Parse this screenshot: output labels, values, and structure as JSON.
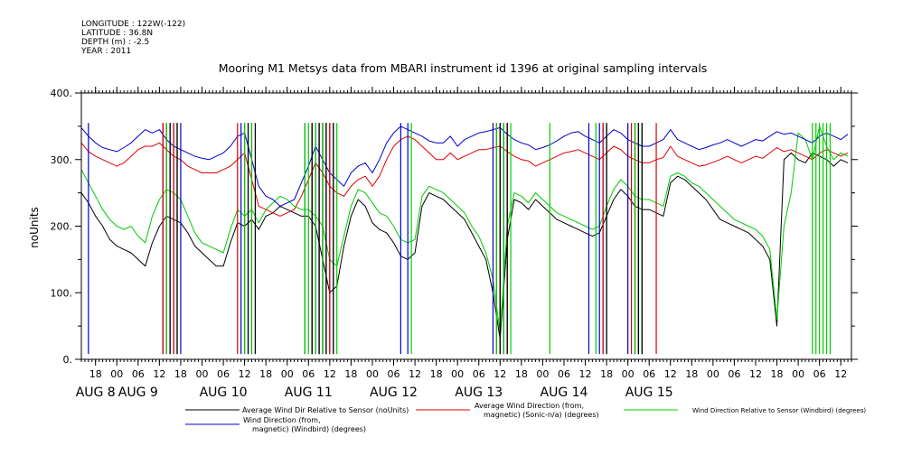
{
  "metadata": {
    "longitude": "LONGITUDE : 122W(-122)",
    "latitude": "LATITUDE : 36.8N",
    "depth": "DEPTH (m) : -2.5",
    "year": "YEAR : 2011"
  },
  "chart_data": {
    "type": "line",
    "title": "Mooring M1 Metsys data from MBARI instrument id 1396 at original sampling intervals",
    "ylabel": "noUnits",
    "xlabel": "",
    "ylim": [
      0,
      400
    ],
    "yticks": [
      "0.",
      "100.",
      "200.",
      "300.",
      "400."
    ],
    "xlim_hours": [
      -10,
      207
    ],
    "hour_ticks": [
      {
        "h": -6,
        "label": "18"
      },
      {
        "h": 0,
        "label": "00"
      },
      {
        "h": 6,
        "label": "06"
      },
      {
        "h": 12,
        "label": "12"
      },
      {
        "h": 18,
        "label": "18"
      },
      {
        "h": 24,
        "label": "00"
      },
      {
        "h": 30,
        "label": "06"
      },
      {
        "h": 36,
        "label": "12"
      },
      {
        "h": 42,
        "label": "18"
      },
      {
        "h": 48,
        "label": "00"
      },
      {
        "h": 54,
        "label": "06"
      },
      {
        "h": 60,
        "label": "12"
      },
      {
        "h": 66,
        "label": "18"
      },
      {
        "h": 72,
        "label": "00"
      },
      {
        "h": 78,
        "label": "06"
      },
      {
        "h": 84,
        "label": "12"
      },
      {
        "h": 90,
        "label": "18"
      },
      {
        "h": 96,
        "label": "00"
      },
      {
        "h": 102,
        "label": "06"
      },
      {
        "h": 108,
        "label": "12"
      },
      {
        "h": 114,
        "label": "18"
      },
      {
        "h": 120,
        "label": "00"
      },
      {
        "h": 126,
        "label": "06"
      },
      {
        "h": 132,
        "label": "12"
      },
      {
        "h": 138,
        "label": "18"
      },
      {
        "h": 144,
        "label": "00"
      },
      {
        "h": 150,
        "label": "06"
      },
      {
        "h": 156,
        "label": "12"
      },
      {
        "h": 162,
        "label": "18"
      },
      {
        "h": 168,
        "label": "00"
      },
      {
        "h": 174,
        "label": "06"
      },
      {
        "h": 180,
        "label": "12"
      },
      {
        "h": 186,
        "label": "18"
      },
      {
        "h": 192,
        "label": "00"
      },
      {
        "h": 198,
        "label": "06"
      },
      {
        "h": 204,
        "label": "12"
      }
    ],
    "day_labels": [
      {
        "h": -6,
        "label": "AUG  8"
      },
      {
        "h": 6,
        "label": "AUG  9"
      },
      {
        "h": 30,
        "label": "AUG 10"
      },
      {
        "h": 54,
        "label": "AUG 11"
      },
      {
        "h": 78,
        "label": "AUG 12"
      },
      {
        "h": 102,
        "label": "AUG 13"
      },
      {
        "h": 126,
        "label": "AUG 14"
      },
      {
        "h": 150,
        "label": "AUG 15"
      }
    ],
    "series": [
      {
        "name": "Average Wind Dir Relative to Sensor (noUnits)",
        "color": "#000000",
        "x": [
          -10,
          -8,
          -6,
          -4,
          -2,
          0,
          2,
          4,
          6,
          8,
          10,
          12,
          14,
          16,
          18,
          20,
          22,
          24,
          26,
          28,
          30,
          32,
          34,
          36,
          38,
          40,
          42,
          44,
          46,
          48,
          50,
          52,
          54,
          56,
          58,
          60,
          62,
          64,
          66,
          68,
          70,
          72,
          74,
          76,
          78,
          80,
          82,
          84,
          86,
          88,
          90,
          92,
          94,
          96,
          98,
          100,
          102,
          104,
          106,
          108,
          110,
          112,
          114,
          116,
          118,
          120,
          122,
          124,
          126,
          128,
          130,
          132,
          134,
          136,
          138,
          140,
          142,
          144,
          146,
          148,
          150,
          152,
          154,
          156,
          158,
          160,
          162,
          164,
          166,
          168,
          170,
          172,
          174,
          176,
          178,
          180,
          182,
          184,
          186,
          188,
          190,
          192,
          194,
          196,
          198,
          200,
          202,
          204,
          206
        ],
        "y": [
          250,
          235,
          215,
          200,
          180,
          170,
          165,
          160,
          150,
          140,
          175,
          200,
          215,
          210,
          205,
          190,
          170,
          160,
          150,
          140,
          140,
          175,
          205,
          200,
          210,
          195,
          215,
          220,
          230,
          225,
          220,
          215,
          215,
          200,
          150,
          100,
          110,
          170,
          215,
          240,
          230,
          205,
          195,
          190,
          175,
          155,
          150,
          160,
          230,
          250,
          245,
          240,
          230,
          220,
          210,
          190,
          170,
          150,
          100,
          30,
          180,
          240,
          235,
          225,
          240,
          230,
          220,
          210,
          205,
          200,
          195,
          190,
          185,
          190,
          215,
          240,
          255,
          245,
          230,
          225,
          225,
          220,
          215,
          265,
          275,
          270,
          260,
          250,
          240,
          225,
          210,
          205,
          200,
          195,
          190,
          180,
          170,
          150,
          50,
          300,
          310,
          300,
          295,
          310,
          305,
          300,
          290,
          300,
          295
        ]
      },
      {
        "name": "Average Wind Direction (from, magnetic) (Sonic-n/a) (degrees)",
        "color": "#e00000",
        "x": [
          -10,
          -8,
          -6,
          -4,
          -2,
          0,
          2,
          4,
          6,
          8,
          10,
          12,
          14,
          16,
          18,
          20,
          22,
          24,
          26,
          28,
          30,
          32,
          34,
          36,
          38,
          40,
          42,
          44,
          46,
          48,
          50,
          52,
          54,
          56,
          58,
          60,
          62,
          64,
          66,
          68,
          70,
          72,
          74,
          76,
          78,
          80,
          82,
          84,
          86,
          88,
          90,
          92,
          94,
          96,
          98,
          100,
          102,
          104,
          106,
          108,
          110,
          112,
          114,
          116,
          118,
          120,
          122,
          124,
          126,
          128,
          130,
          132,
          134,
          136,
          138,
          140,
          142,
          144,
          146,
          148,
          150,
          152,
          154,
          156,
          158,
          160,
          162,
          164,
          166,
          168,
          170,
          172,
          174,
          176,
          178,
          180,
          182,
          184,
          186,
          188,
          190,
          192,
          194,
          196,
          198,
          200,
          202,
          204,
          206
        ],
        "y": [
          325,
          312,
          305,
          300,
          295,
          290,
          295,
          305,
          315,
          320,
          320,
          325,
          315,
          305,
          300,
          290,
          285,
          280,
          280,
          280,
          285,
          290,
          300,
          310,
          270,
          230,
          225,
          220,
          215,
          220,
          225,
          245,
          270,
          295,
          280,
          260,
          250,
          245,
          260,
          270,
          275,
          260,
          275,
          300,
          320,
          330,
          335,
          330,
          320,
          310,
          300,
          300,
          310,
          300,
          305,
          310,
          315,
          315,
          318,
          320,
          312,
          305,
          300,
          298,
          290,
          295,
          300,
          305,
          310,
          312,
          315,
          310,
          305,
          300,
          310,
          320,
          315,
          305,
          300,
          295,
          295,
          300,
          303,
          320,
          305,
          300,
          295,
          290,
          292,
          296,
          300,
          305,
          300,
          295,
          300,
          305,
          302,
          310,
          318,
          312,
          315,
          310,
          305,
          300,
          310,
          315,
          310,
          305,
          310
        ]
      },
      {
        "name": "Wind Direction Relative to Sensor (Windbird) (degrees)",
        "color": "#00cc00",
        "x": [
          -10,
          -8,
          -6,
          -4,
          -2,
          0,
          2,
          4,
          6,
          8,
          10,
          12,
          14,
          16,
          18,
          20,
          22,
          24,
          26,
          28,
          30,
          32,
          34,
          36,
          38,
          40,
          42,
          44,
          46,
          48,
          50,
          52,
          54,
          56,
          58,
          60,
          62,
          64,
          66,
          68,
          70,
          72,
          74,
          76,
          78,
          80,
          82,
          84,
          86,
          88,
          90,
          92,
          94,
          96,
          98,
          100,
          102,
          104,
          106,
          108,
          110,
          112,
          114,
          116,
          118,
          120,
          122,
          124,
          126,
          128,
          130,
          132,
          134,
          136,
          138,
          140,
          142,
          144,
          146,
          148,
          150,
          152,
          154,
          156,
          158,
          160,
          162,
          164,
          166,
          168,
          170,
          172,
          174,
          176,
          178,
          180,
          182,
          184,
          186,
          188,
          190,
          192,
          194,
          196,
          198,
          200,
          202,
          204,
          206
        ],
        "y": [
          285,
          265,
          245,
          225,
          210,
          200,
          195,
          200,
          185,
          175,
          215,
          240,
          255,
          250,
          240,
          215,
          190,
          175,
          170,
          165,
          160,
          195,
          225,
          215,
          225,
          205,
          225,
          235,
          245,
          240,
          230,
          225,
          225,
          215,
          200,
          150,
          140,
          185,
          230,
          255,
          250,
          235,
          220,
          215,
          200,
          180,
          175,
          180,
          245,
          260,
          255,
          250,
          240,
          230,
          220,
          200,
          185,
          160,
          120,
          40,
          200,
          250,
          245,
          235,
          250,
          240,
          230,
          220,
          215,
          210,
          205,
          200,
          195,
          200,
          230,
          255,
          270,
          260,
          245,
          240,
          240,
          235,
          230,
          275,
          280,
          275,
          265,
          260,
          250,
          240,
          230,
          220,
          210,
          205,
          200,
          195,
          185,
          165,
          60,
          200,
          250,
          340,
          330,
          300,
          350,
          320,
          300,
          310,
          305
        ]
      },
      {
        "name": "Wind Direction (from, magnetic) (Windbird) (degrees)",
        "color": "#0000cc",
        "x": [
          -10,
          -8,
          -6,
          -4,
          -2,
          0,
          2,
          4,
          6,
          8,
          10,
          12,
          14,
          16,
          18,
          20,
          22,
          24,
          26,
          28,
          30,
          32,
          34,
          36,
          38,
          40,
          42,
          44,
          46,
          48,
          50,
          52,
          54,
          56,
          58,
          60,
          62,
          64,
          66,
          68,
          70,
          72,
          74,
          76,
          78,
          80,
          82,
          84,
          86,
          88,
          90,
          92,
          94,
          96,
          98,
          100,
          102,
          104,
          106,
          108,
          110,
          112,
          114,
          116,
          118,
          120,
          122,
          124,
          126,
          128,
          130,
          132,
          134,
          136,
          138,
          140,
          142,
          144,
          146,
          148,
          150,
          152,
          154,
          156,
          158,
          160,
          162,
          164,
          166,
          168,
          170,
          172,
          174,
          176,
          178,
          180,
          182,
          184,
          186,
          188,
          190,
          192,
          194,
          196,
          198,
          200,
          202,
          204,
          206
        ],
        "y": [
          348,
          335,
          325,
          318,
          315,
          312,
          318,
          325,
          335,
          345,
          340,
          345,
          330,
          320,
          315,
          310,
          305,
          302,
          300,
          305,
          310,
          320,
          335,
          340,
          300,
          260,
          245,
          240,
          230,
          235,
          240,
          265,
          290,
          320,
          300,
          280,
          270,
          260,
          280,
          290,
          295,
          280,
          300,
          325,
          340,
          350,
          345,
          340,
          335,
          328,
          325,
          325,
          335,
          320,
          330,
          335,
          340,
          342,
          345,
          348,
          338,
          330,
          325,
          322,
          315,
          318,
          322,
          328,
          335,
          340,
          342,
          335,
          330,
          325,
          335,
          345,
          340,
          330,
          325,
          320,
          320,
          325,
          330,
          345,
          330,
          325,
          320,
          315,
          318,
          322,
          325,
          330,
          325,
          320,
          325,
          330,
          328,
          335,
          342,
          338,
          340,
          335,
          330,
          325,
          335,
          340,
          335,
          330,
          338
        ]
      }
    ],
    "spikes": [
      {
        "series": 3,
        "hours": [
          -8,
          13,
          15,
          16,
          18,
          35,
          37,
          53,
          55,
          56,
          57,
          58,
          59,
          60,
          80,
          82,
          106,
          108,
          109,
          110,
          133,
          136,
          137,
          138,
          144,
          146,
          147,
          148
        ]
      },
      {
        "series": 1,
        "hours": [
          13,
          14,
          16,
          17,
          34,
          36,
          38,
          55,
          57,
          58,
          59,
          60,
          61,
          107,
          108,
          110,
          137,
          145,
          146,
          147,
          152
        ]
      },
      {
        "series": 2,
        "hours": [
          14,
          17,
          36,
          38,
          53,
          54,
          56,
          58,
          59,
          61,
          62,
          83,
          107,
          109,
          111,
          122,
          135,
          138,
          146,
          147,
          148,
          196,
          197,
          198,
          199,
          200,
          201
        ]
      },
      {
        "series": 0,
        "hours": [
          15,
          17,
          37,
          39,
          55,
          57,
          59,
          61,
          108,
          110,
          138,
          147,
          148
        ]
      }
    ],
    "legend": {
      "position": "bottom",
      "entries": [
        {
          "series": 0,
          "line1": "Average Wind Dir Relative to Sensor (noUnits)",
          "line2": ""
        },
        {
          "series": 1,
          "line1": "Average Wind Direction (from,",
          "line2": "magnetic) (Sonic-n/a) (degrees)"
        },
        {
          "series": 2,
          "line1": "Wind Direction Relative to Sensor (Windbird) (degrees)",
          "line2": ""
        },
        {
          "series": 3,
          "line1": "Wind Direction (from,",
          "line2": "magnetic) (Windbird) (degrees)"
        }
      ]
    }
  }
}
